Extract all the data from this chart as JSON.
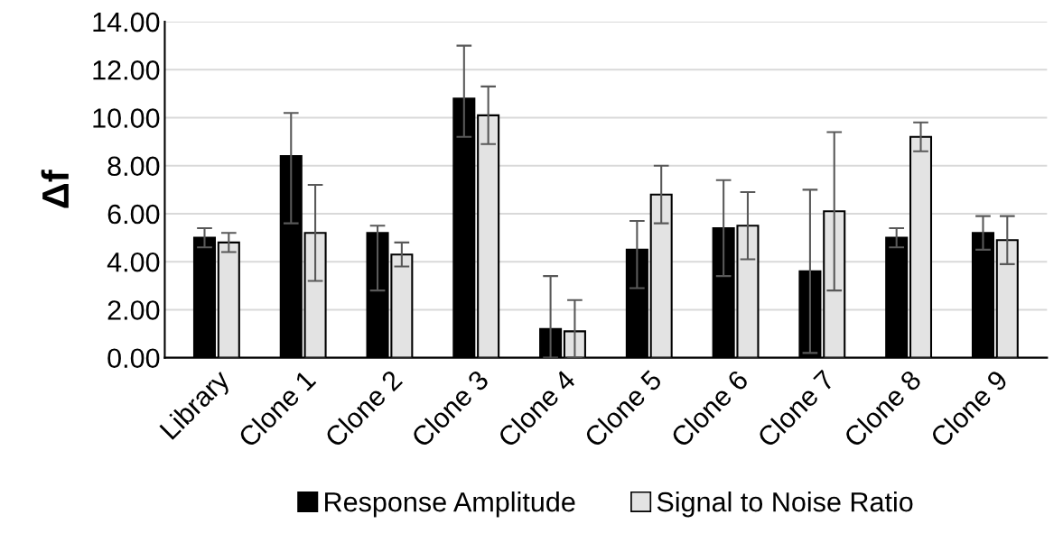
{
  "chart_data": {
    "type": "bar",
    "ylabel": "Δf",
    "categories": [
      "Library",
      "Clone 1",
      "Clone 2",
      "Clone 3",
      "Clone 4",
      "Clone 5",
      "Clone 6",
      "Clone 7",
      "Clone 8",
      "Clone 9"
    ],
    "series": [
      {
        "name": "Response Amplitude",
        "color": "#000000",
        "values": [
          5.0,
          8.4,
          5.2,
          10.8,
          1.2,
          4.5,
          5.4,
          3.6,
          5.0,
          5.2
        ],
        "errors": [
          [
            4.6,
            5.4
          ],
          [
            5.6,
            10.2
          ],
          [
            2.8,
            5.5
          ],
          [
            9.2,
            13.0
          ],
          [
            0.0,
            3.4
          ],
          [
            2.9,
            5.7
          ],
          [
            3.4,
            7.4
          ],
          [
            0.2,
            7.0
          ],
          [
            4.6,
            5.4
          ],
          [
            4.5,
            5.9
          ]
        ]
      },
      {
        "name": "Signal to Noise Ratio",
        "color": "#e3e3e3",
        "values": [
          4.8,
          5.2,
          4.3,
          10.1,
          1.1,
          6.8,
          5.5,
          6.1,
          9.2,
          4.9
        ],
        "errors": [
          [
            4.4,
            5.2
          ],
          [
            3.2,
            7.2
          ],
          [
            3.8,
            4.8
          ],
          [
            8.9,
            11.3
          ],
          [
            0.0,
            2.4
          ],
          [
            5.6,
            8.0
          ],
          [
            4.1,
            6.9
          ],
          [
            2.8,
            9.4
          ],
          [
            8.6,
            9.8
          ],
          [
            3.9,
            5.9
          ]
        ]
      }
    ],
    "ylim": [
      0,
      14
    ],
    "yticks": [
      {
        "value": 0,
        "label": "0.00"
      },
      {
        "value": 2,
        "label": "2.00"
      },
      {
        "value": 4,
        "label": "4.00"
      },
      {
        "value": 6,
        "label": "6.00"
      },
      {
        "value": 8,
        "label": "8.00"
      },
      {
        "value": 10,
        "label": "10.00"
      },
      {
        "value": 12,
        "label": "12.00"
      },
      {
        "value": 14,
        "label": "14.00"
      }
    ],
    "grid": "y",
    "legend": "bottom"
  }
}
